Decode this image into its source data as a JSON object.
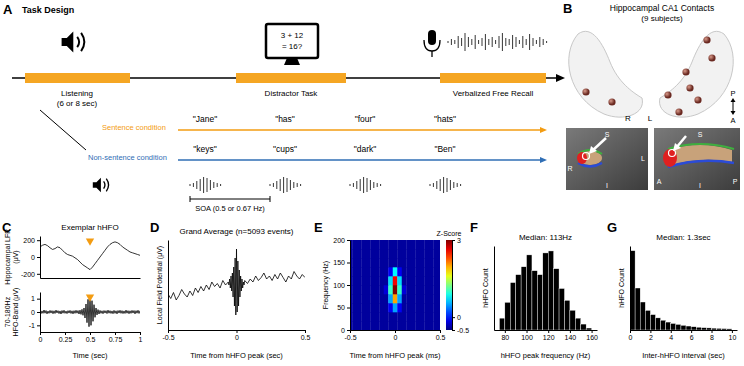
{
  "panels": {
    "A": {
      "panel": "A",
      "title": "Task Design",
      "color": "#f5a623",
      "phases": [
        "Listening",
        "Distractor Task",
        "Verbalized Free Recall"
      ],
      "listening_duration": "(6 or 8 sec)",
      "monitor_text": [
        "3 + 12",
        "= 16?"
      ],
      "conditions": [
        {
          "name": "Sentence condition",
          "color": "#f39c12",
          "words": [
            "\"Jane\"",
            "\"has\"",
            "\"four\"",
            "\"hats\""
          ]
        },
        {
          "name": "Non-sentence condition",
          "color": "#2f6eb5",
          "words": [
            "\"keys\"",
            "\"cups\"",
            "\"dark\"",
            "\"Ben\""
          ]
        }
      ],
      "soa": "SOA (0.5 or 0.67 Hz)"
    },
    "B": {
      "panel": "B",
      "title": "Hippocampal CA1 Contacts",
      "subtitle": "(9 subjects)",
      "hemispheres": [
        "R",
        "L"
      ],
      "axis_labels": [
        "P",
        "A"
      ],
      "coronal_labels": {
        "top": "S",
        "bottom": "I",
        "left": "R",
        "right": "L"
      },
      "sagittal_labels": {
        "top": "S",
        "bottom": "I",
        "left": "A",
        "right": "P"
      }
    }
  },
  "chart_data": [
    {
      "type": "line",
      "panel": "C",
      "title": "Exemplar hHFO",
      "y_label": [
        "Hippocampal LFP",
        "(μV)"
      ],
      "x": [
        0,
        0.025,
        0.05,
        0.075,
        0.1,
        0.125,
        0.15,
        0.175,
        0.2,
        0.225,
        0.25,
        0.275,
        0.3,
        0.325,
        0.35,
        0.375,
        0.4,
        0.425,
        0.45,
        0.475,
        0.5,
        0.525,
        0.55,
        0.575,
        0.6,
        0.625,
        0.65,
        0.675,
        0.7,
        0.725,
        0.75,
        0.775,
        0.8,
        0.825,
        0.85,
        0.875,
        0.9,
        0.925,
        0.95,
        0.975,
        1
      ],
      "values": [
        120,
        140,
        150,
        135,
        110,
        90,
        100,
        120,
        110,
        80,
        50,
        30,
        20,
        10,
        -10,
        -30,
        -60,
        -90,
        -110,
        -130,
        -150,
        -120,
        -80,
        -40,
        0,
        40,
        80,
        120,
        150,
        170,
        180,
        170,
        150,
        120,
        100,
        80,
        60,
        50,
        40,
        30,
        20
      ],
      "xlim": [
        0,
        1
      ],
      "ylim": [
        -250,
        250
      ],
      "yticks": [
        -200,
        0,
        200
      ],
      "tick_labels": "y",
      "color": "#000000",
      "peak_marker_x": 0.5
    },
    {
      "type": "line",
      "x_label": "Time (sec)",
      "y_label": [
        "70-180Hz",
        "HFO-Band (μV)"
      ],
      "x": [
        0,
        0.01,
        0.02,
        0.03,
        0.04,
        0.05,
        0.06,
        0.07,
        0.08,
        0.09,
        0.1,
        0.11,
        0.12,
        0.13,
        0.14,
        0.15,
        0.16,
        0.17,
        0.18,
        0.19,
        0.2,
        0.21,
        0.22,
        0.23,
        0.24,
        0.25,
        0.26,
        0.27,
        0.28,
        0.29,
        0.3,
        0.31,
        0.32,
        0.33,
        0.34,
        0.35,
        0.36,
        0.37,
        0.38,
        0.39,
        0.4,
        0.41,
        0.42,
        0.43,
        0.44,
        0.45,
        0.46,
        0.47,
        0.48,
        0.49,
        0.5,
        0.51,
        0.52,
        0.53,
        0.54,
        0.55,
        0.56,
        0.57,
        0.58,
        0.59,
        0.6,
        0.61,
        0.62,
        0.63,
        0.64,
        0.65,
        0.66,
        0.67,
        0.68,
        0.69,
        0.7,
        0.71,
        0.72,
        0.73,
        0.74,
        0.75,
        0.76,
        0.77,
        0.78,
        0.79,
        0.8,
        0.81,
        0.82,
        0.83,
        0.84,
        0.85,
        0.86,
        0.87,
        0.88,
        0.89,
        0.9,
        0.91,
        0.92,
        0.93,
        0.94,
        0.95,
        0.96,
        0.97,
        0.98,
        0.99,
        1
      ],
      "values": [
        0.1,
        -0.12,
        0.08,
        -0.1,
        0.15,
        -0.09,
        0.11,
        -0.14,
        0.07,
        -0.1,
        0.12,
        -0.08,
        0.1,
        -0.13,
        0.09,
        -0.11,
        0.14,
        -0.07,
        0.1,
        -0.12,
        0.08,
        -0.15,
        0.11,
        -0.09,
        0.13,
        -0.1,
        0.07,
        -0.12,
        0.1,
        -0.08,
        0.12,
        -0.11,
        0.09,
        -0.14,
        0.1,
        -0.1,
        0.13,
        -0.09,
        0.11,
        -0.15,
        0.14,
        -0.18,
        0.2,
        -0.25,
        0.3,
        -0.45,
        0.6,
        -0.8,
        0.95,
        -1.1,
        1.2,
        -1.0,
        0.85,
        -0.7,
        0.55,
        -0.4,
        0.3,
        -0.22,
        0.18,
        -0.15,
        0.12,
        -0.1,
        0.09,
        -0.13,
        0.11,
        -0.08,
        0.1,
        -0.12,
        0.14,
        -0.09,
        0.1,
        -0.11,
        0.08,
        -0.13,
        0.12,
        -0.1,
        0.09,
        -0.14,
        0.11,
        -0.08,
        0.13,
        -0.1,
        0.1,
        -0.12,
        0.08,
        -0.11,
        0.14,
        -0.09,
        0.1,
        -0.13,
        0.09,
        -0.1,
        0.12,
        -0.08,
        0.11,
        -0.14,
        0.1,
        -0.09,
        0.13,
        -0.11,
        0.1
      ],
      "xlim": [
        0,
        1
      ],
      "ylim": [
        -1.5,
        1.5
      ],
      "xticks": [
        0,
        0.25,
        0.5,
        0.75,
        1
      ],
      "yticks": [
        -1,
        0,
        1
      ],
      "color": "#000000",
      "peak_marker_x": 0.5
    },
    {
      "type": "line",
      "panel": "D",
      "title": "Grand Average (n=5093 events)",
      "x_label": "Time from hHFO peak (sec)",
      "y_label": "Local Field Potential (μV)",
      "x": [
        -0.5,
        -0.48,
        -0.46,
        -0.44,
        -0.42,
        -0.4,
        -0.38,
        -0.36,
        -0.34,
        -0.32,
        -0.3,
        -0.28,
        -0.26,
        -0.24,
        -0.22,
        -0.2,
        -0.18,
        -0.16,
        -0.14,
        -0.12,
        -0.1,
        -0.08,
        -0.06,
        -0.055,
        -0.05,
        -0.045,
        -0.04,
        -0.035,
        -0.03,
        -0.025,
        -0.02,
        -0.015,
        -0.01,
        -0.005,
        0,
        0.005,
        0.01,
        0.015,
        0.02,
        0.025,
        0.03,
        0.035,
        0.04,
        0.045,
        0.05,
        0.055,
        0.06,
        0.08,
        0.1,
        0.12,
        0.14,
        0.16,
        0.18,
        0.2,
        0.22,
        0.24,
        0.26,
        0.28,
        0.3,
        0.32,
        0.34,
        0.36,
        0.38,
        0.4,
        0.42,
        0.44,
        0.46,
        0.48,
        0.5
      ],
      "values": [
        -3,
        -4.5,
        -2.5,
        -5,
        -3.5,
        -1.5,
        -3,
        -4,
        -2,
        -3.5,
        -1,
        -2.5,
        -0.5,
        -2,
        0,
        -1.5,
        1,
        -0.5,
        0.5,
        -1,
        1.5,
        0,
        1,
        0,
        2,
        -1,
        3,
        -2,
        4,
        -4,
        6,
        -7,
        9,
        -10,
        12,
        -9,
        8,
        -7,
        5,
        -4,
        3,
        -2,
        2,
        -1,
        1,
        0,
        1.5,
        0.5,
        2,
        1,
        3,
        1.5,
        2.5,
        4,
        2,
        3,
        1.5,
        3.5,
        2,
        4,
        2.5,
        1,
        3,
        2,
        4.5,
        3,
        2,
        3.5,
        2.5
      ],
      "xlim": [
        -0.5,
        0.5
      ],
      "ylim": [
        -15,
        15
      ],
      "xticks": [
        -0.5,
        0,
        0.5
      ],
      "tick_labels": "x",
      "color": "#000000"
    },
    {
      "type": "heatmap",
      "panel": "E",
      "x_label": "Time from hHFO peak (ms)",
      "y_label": "Frequency (Hz)",
      "x": [
        -0.5,
        -0.45,
        -0.4,
        -0.35,
        -0.3,
        -0.25,
        -0.2,
        -0.15,
        -0.1,
        -0.05,
        0,
        0.05,
        0.1,
        0.15,
        0.2,
        0.25,
        0.3,
        0.35,
        0.4,
        0.45,
        0.5
      ],
      "y": [
        10,
        30,
        50,
        70,
        90,
        110,
        130,
        150,
        170,
        190
      ],
      "values": [
        [
          -0.4,
          -0.4,
          -0.4,
          -0.4,
          -0.4,
          -0.4,
          -0.4,
          -0.4,
          -0.4,
          -0.4,
          -0.4,
          -0.4,
          -0.4,
          -0.4,
          -0.4,
          -0.4,
          -0.4,
          -0.4,
          -0.4,
          -0.4,
          -0.4
        ],
        [
          -0.4,
          -0.4,
          -0.4,
          -0.4,
          -0.4,
          -0.4,
          -0.4,
          -0.4,
          -0.4,
          -0.4,
          -0.4,
          -0.4,
          -0.4,
          -0.4,
          -0.4,
          -0.4,
          -0.4,
          -0.4,
          -0.4,
          -0.4,
          -0.4
        ],
        [
          -0.4,
          -0.4,
          -0.4,
          -0.4,
          -0.4,
          -0.4,
          -0.4,
          -0.4,
          -0.4,
          -0.1,
          0.5,
          -0.1,
          -0.4,
          -0.4,
          -0.4,
          -0.4,
          -0.4,
          -0.4,
          -0.4,
          -0.4,
          -0.4
        ],
        [
          -0.4,
          -0.4,
          -0.4,
          -0.4,
          -0.4,
          -0.4,
          -0.4,
          -0.4,
          -0.4,
          0.5,
          2.0,
          0.5,
          -0.4,
          -0.4,
          -0.4,
          -0.4,
          -0.4,
          -0.4,
          -0.4,
          -0.4,
          -0.4
        ],
        [
          -0.4,
          -0.4,
          -0.4,
          -0.4,
          -0.4,
          -0.4,
          -0.4,
          -0.4,
          -0.2,
          1.0,
          3.0,
          1.0,
          -0.2,
          -0.4,
          -0.4,
          -0.4,
          -0.4,
          -0.4,
          -0.4,
          -0.4,
          -0.4
        ],
        [
          -0.4,
          -0.4,
          -0.4,
          -0.4,
          -0.4,
          -0.4,
          -0.4,
          -0.4,
          -0.4,
          0.7,
          2.6,
          0.7,
          -0.4,
          -0.4,
          -0.4,
          -0.4,
          -0.4,
          -0.4,
          -0.4,
          -0.4,
          -0.4
        ],
        [
          -0.4,
          -0.4,
          -0.4,
          -0.4,
          -0.4,
          -0.4,
          -0.4,
          -0.4,
          -0.4,
          -0.1,
          0.8,
          -0.1,
          -0.4,
          -0.4,
          -0.4,
          -0.4,
          -0.4,
          -0.4,
          -0.4,
          -0.4,
          -0.4
        ],
        [
          -0.4,
          -0.4,
          -0.4,
          -0.4,
          -0.4,
          -0.4,
          -0.4,
          -0.4,
          -0.4,
          -0.4,
          -0.4,
          -0.4,
          -0.4,
          -0.4,
          -0.4,
          -0.4,
          -0.4,
          -0.4,
          -0.4,
          -0.4,
          -0.4
        ],
        [
          -0.4,
          -0.4,
          -0.4,
          -0.4,
          -0.4,
          -0.4,
          -0.4,
          -0.4,
          -0.4,
          -0.4,
          -0.4,
          -0.4,
          -0.4,
          -0.4,
          -0.4,
          -0.4,
          -0.4,
          -0.4,
          -0.4,
          -0.4,
          -0.4
        ],
        [
          -0.4,
          -0.4,
          -0.4,
          -0.4,
          -0.4,
          -0.4,
          -0.4,
          -0.4,
          -0.4,
          -0.4,
          -0.4,
          -0.4,
          -0.4,
          -0.4,
          -0.4,
          -0.4,
          -0.4,
          -0.4,
          -0.4,
          -0.4,
          -0.4
        ]
      ],
      "xlim": [
        -0.5,
        0.5
      ],
      "ylim": [
        0,
        200
      ],
      "xticks": [
        -0.5,
        0,
        0.5
      ],
      "yticks": [
        0,
        50,
        100,
        150,
        200
      ],
      "color_label": "Z-Score",
      "color_range": [
        -0.5,
        3
      ],
      "color_ticks": [
        -0.5,
        0,
        3
      ]
    },
    {
      "type": "histogram",
      "panel": "F",
      "title": "Median: 113Hz",
      "x_label": "hHFO peak frequency (Hz)",
      "y_label": "hHFO Count",
      "bins": [
        75,
        80,
        85,
        90,
        95,
        100,
        105,
        110,
        115,
        120,
        125,
        130,
        135,
        140,
        145,
        150,
        155,
        160
      ],
      "values": [
        120,
        280,
        480,
        560,
        640,
        760,
        600,
        560,
        780,
        800,
        620,
        420,
        300,
        200,
        120,
        60,
        20
      ],
      "xlim": [
        70,
        165
      ],
      "ylim": [
        0,
        850
      ],
      "xticks": [
        80,
        100,
        120,
        140,
        160
      ],
      "tick_labels": "x",
      "color": "#000000"
    },
    {
      "type": "histogram",
      "panel": "G",
      "title": "Median: 1.3sec",
      "x_label": "Inter-hHFO interval (sec)",
      "y_label": "hHFO Count",
      "bins": [
        0,
        0.5,
        1,
        1.5,
        2,
        2.5,
        3,
        3.5,
        4,
        4.5,
        5,
        5.5,
        6,
        6.5,
        7,
        7.5,
        8,
        8.5,
        9,
        9.5,
        10
      ],
      "values": [
        1700,
        900,
        600,
        420,
        330,
        260,
        210,
        170,
        140,
        120,
        100,
        85,
        70,
        60,
        50,
        45,
        40,
        35,
        30,
        25
      ],
      "xlim": [
        0,
        10.5
      ],
      "ylim": [
        0,
        1800
      ],
      "xticks": [
        0,
        2,
        4,
        6,
        8,
        10
      ],
      "tick_labels": "x",
      "color": "#000000"
    }
  ]
}
